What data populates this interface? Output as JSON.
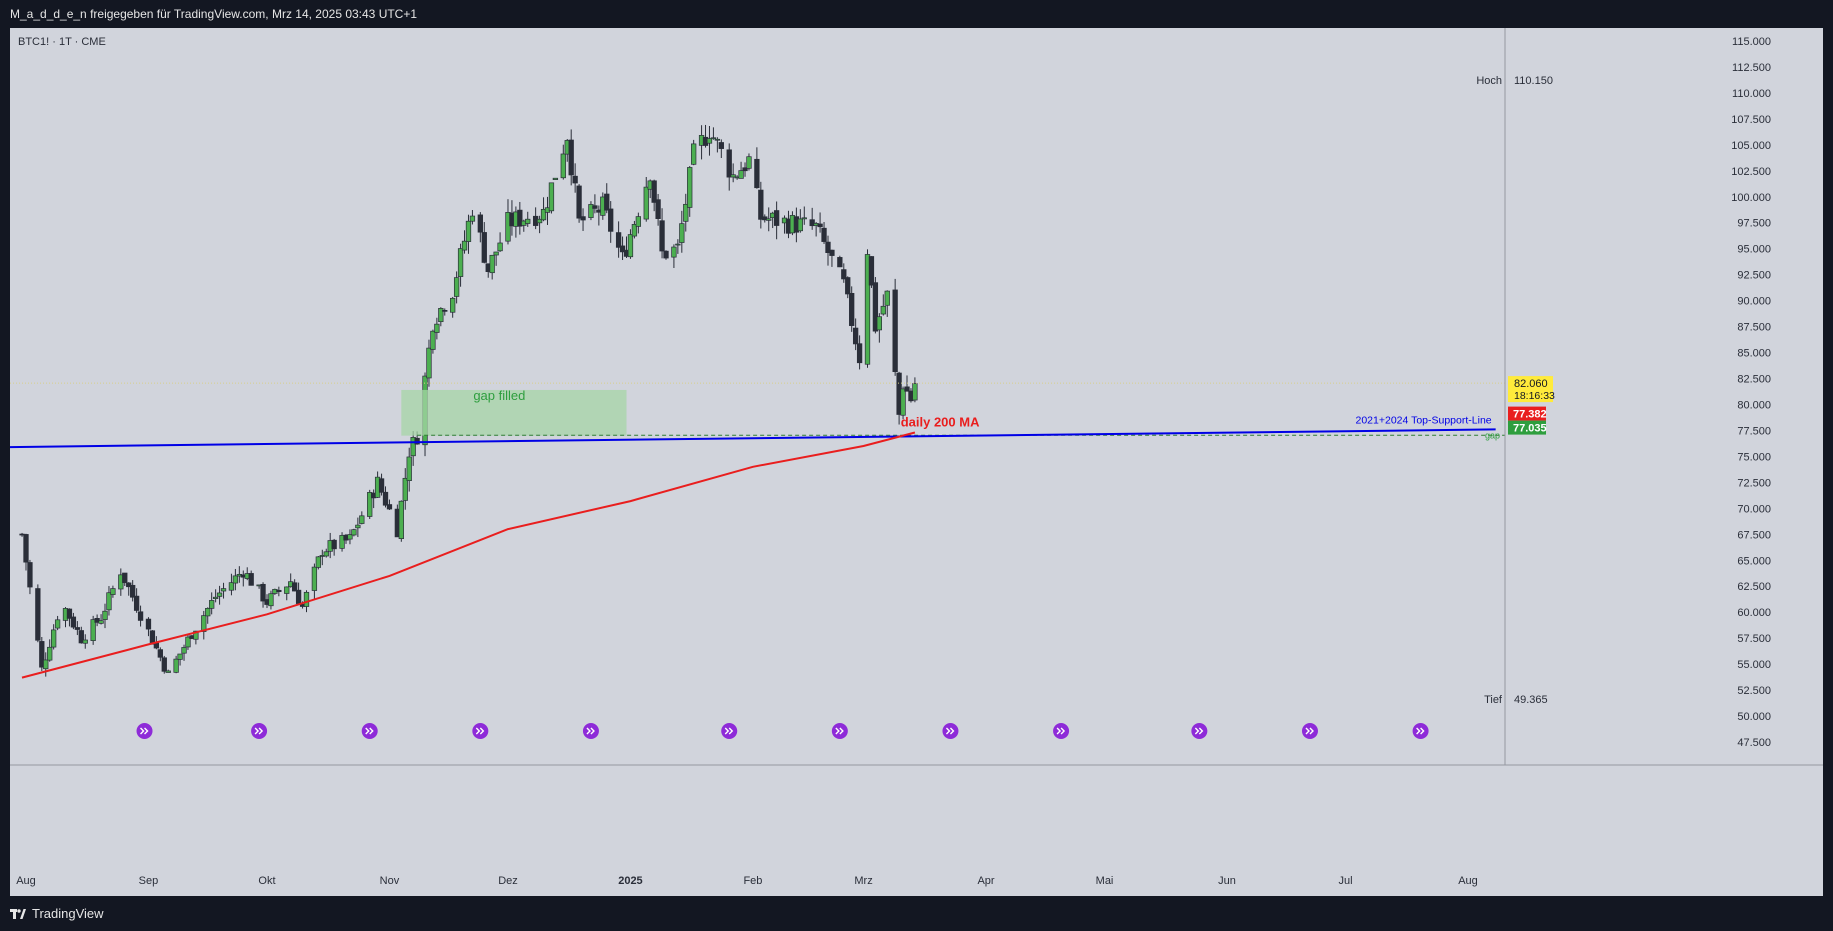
{
  "header": {
    "publisher_line": "M_a_d_d_e_n freigegeben für TradingView.com, Mrz 14, 2025 03:43 UTC+1"
  },
  "footer": {
    "brand": "TradingView"
  },
  "chart_data": {
    "type": "candlestick",
    "symbol_label": "BTC1! · 1T · CME",
    "colors": {
      "up": "#4caf50",
      "down": "#2a2e39",
      "ma": "#e91e1e",
      "support_line": "#0000e6",
      "gap_zone": "#a5d6a7",
      "gap_line": "#2e7d32",
      "last_price_bg": "#ffeb3b"
    },
    "y_axis": {
      "min": 46000,
      "max": 116000,
      "ticks": [
        "47.500",
        "50.000",
        "52.500",
        "55.000",
        "57.500",
        "60.000",
        "62.500",
        "65.000",
        "67.500",
        "70.000",
        "72.500",
        "75.000",
        "77.500",
        "80.000",
        "82.500",
        "85.000",
        "87.500",
        "90.000",
        "92.500",
        "95.000",
        "97.500",
        "100.000",
        "102.500",
        "105.000",
        "107.500",
        "110.000",
        "112.500",
        "115.000"
      ]
    },
    "x_axis": {
      "start": "2024-07-31",
      "end": "2025-08-16",
      "labels": [
        {
          "date": "2024-08-01",
          "label": "Aug"
        },
        {
          "date": "2024-09-01",
          "label": "Sep"
        },
        {
          "date": "2024-10-01",
          "label": "Okt"
        },
        {
          "date": "2024-11-01",
          "label": "Nov"
        },
        {
          "date": "2024-12-01",
          "label": "Dez"
        },
        {
          "date": "2025-01-01",
          "label": "2025"
        },
        {
          "date": "2025-02-01",
          "label": "Feb"
        },
        {
          "date": "2025-03-01",
          "label": "Mrz"
        },
        {
          "date": "2025-04-01",
          "label": "Apr"
        },
        {
          "date": "2025-05-01",
          "label": "Mai"
        },
        {
          "date": "2025-06-01",
          "label": "Jun"
        },
        {
          "date": "2025-07-01",
          "label": "Jul"
        },
        {
          "date": "2025-08-01",
          "label": "Aug"
        }
      ]
    },
    "close_anchors": [
      [
        "2024-07-31",
        67500
      ],
      [
        "2024-08-05",
        54500
      ],
      [
        "2024-08-10",
        61000
      ],
      [
        "2024-08-15",
        57500
      ],
      [
        "2024-08-20",
        59500
      ],
      [
        "2024-08-25",
        64000
      ],
      [
        "2024-08-31",
        59000
      ],
      [
        "2024-09-06",
        54000
      ],
      [
        "2024-09-12",
        58000
      ],
      [
        "2024-09-18",
        61500
      ],
      [
        "2024-09-25",
        64000
      ],
      [
        "2024-10-01",
        61000
      ],
      [
        "2024-10-07",
        63000
      ],
      [
        "2024-10-10",
        60500
      ],
      [
        "2024-10-15",
        66000
      ],
      [
        "2024-10-22",
        67000
      ],
      [
        "2024-10-29",
        72500
      ],
      [
        "2024-11-03",
        68000
      ],
      [
        "2024-11-06",
        75500
      ],
      [
        "2024-11-08",
        77000
      ],
      [
        "2024-11-12",
        88000
      ],
      [
        "2024-11-17",
        91000
      ],
      [
        "2024-11-22",
        99000
      ],
      [
        "2024-11-26",
        93000
      ],
      [
        "2024-12-01",
        97500
      ],
      [
        "2024-12-05",
        98000
      ],
      [
        "2024-12-10",
        98500
      ],
      [
        "2024-12-16",
        106000
      ],
      [
        "2024-12-19",
        97500
      ],
      [
        "2024-12-25",
        99000
      ],
      [
        "2024-12-30",
        94000
      ],
      [
        "2025-01-06",
        102500
      ],
      [
        "2025-01-09",
        94500
      ],
      [
        "2025-01-13",
        95000
      ],
      [
        "2025-01-17",
        104000
      ],
      [
        "2025-01-21",
        106500
      ],
      [
        "2025-01-27",
        102000
      ],
      [
        "2025-01-31",
        103500
      ],
      [
        "2025-02-03",
        98000
      ],
      [
        "2025-02-10",
        97500
      ],
      [
        "2025-02-17",
        97000
      ],
      [
        "2025-02-24",
        91500
      ],
      [
        "2025-02-28",
        84500
      ],
      [
        "2025-03-02",
        95000
      ],
      [
        "2025-03-04",
        87500
      ],
      [
        "2025-03-07",
        90500
      ],
      [
        "2025-03-10",
        79000
      ],
      [
        "2025-03-11",
        82000
      ],
      [
        "2025-03-13",
        80500
      ],
      [
        "2025-03-14",
        82060
      ]
    ],
    "ma_200_anchors": [
      [
        "2024-07-31",
        53700
      ],
      [
        "2024-09-01",
        56900
      ],
      [
        "2024-10-01",
        59800
      ],
      [
        "2024-11-01",
        63500
      ],
      [
        "2024-12-01",
        68000
      ],
      [
        "2025-01-01",
        70700
      ],
      [
        "2025-02-01",
        74000
      ],
      [
        "2025-03-01",
        76000
      ],
      [
        "2025-03-14",
        77300
      ]
    ],
    "support_line": {
      "name": "2021+2024 Top-Support-Line",
      "start": {
        "date": "2024-07-31",
        "value": 75900
      },
      "end": {
        "date": "2025-08-08",
        "value": 77600
      }
    },
    "gap": {
      "label": "gap",
      "value": 77035,
      "zone_start": "2024-11-04",
      "zone_end": "2024-12-31",
      "zone_low": 77000,
      "zone_high": 81400,
      "zone_label": "gap filled"
    },
    "annotations": [
      {
        "text": "daily 200 MA",
        "date": "2025-03-18",
        "value": 77500
      }
    ],
    "price_labels": {
      "last": {
        "value": 82060,
        "text": "82.060",
        "countdown": "18:16:33"
      },
      "ma": {
        "text": "77.382",
        "value": 77382
      },
      "gap": {
        "text": "77.035",
        "value": 77035
      }
    },
    "extremes": {
      "high": {
        "label": "Hoch",
        "text": "110.150",
        "value": 110150
      },
      "low": {
        "label": "Tief",
        "text": "49.365",
        "value": 49365
      }
    },
    "event_markers": [
      "2024-08-31",
      "2024-09-29",
      "2024-10-27",
      "2024-11-24",
      "2024-12-22",
      "2025-01-26",
      "2025-02-23",
      "2025-03-23",
      "2025-04-20",
      "2025-05-25",
      "2025-06-22",
      "2025-07-20"
    ]
  }
}
